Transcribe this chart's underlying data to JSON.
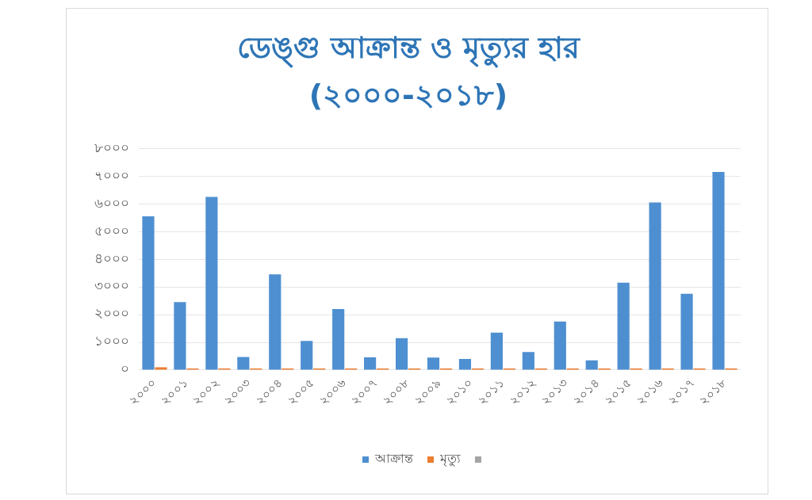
{
  "chart_data": {
    "type": "bar",
    "title": "ডেঙ্গু আক্রান্ত ও মৃত্যুর হার (২০০০-২০১৮)",
    "categories": [
      "২০০০",
      "২০০১",
      "২০০২",
      "২০০৩",
      "২০০৪",
      "২০০৫",
      "২০০৬",
      "২০০৭",
      "২০০৮",
      "২০০৯",
      "২০১০",
      "২০১১",
      "২০১২",
      "২০১৩",
      "২০১৪",
      "২০১৫",
      "২০১৬",
      "২০১৭",
      "২০১৮"
    ],
    "series": [
      {
        "name": "আক্রান্ত",
        "color": "#4e8fd1",
        "values": [
          5550,
          2450,
          6250,
          470,
          3450,
          1050,
          2200,
          460,
          1150,
          450,
          400,
          1350,
          650,
          1750,
          350,
          3150,
          6050,
          2750,
          7150
        ]
      },
      {
        "name": "মৃত্যু",
        "color": "#ed7d31",
        "values": [
          100,
          50,
          50,
          0,
          0,
          0,
          0,
          0,
          0,
          0,
          0,
          0,
          0,
          0,
          0,
          0,
          0,
          0,
          0
        ]
      }
    ],
    "ylim": [
      0,
      8000
    ],
    "yticks": [
      {
        "value": 0,
        "label": "০"
      },
      {
        "value": 1000,
        "label": "১০০০"
      },
      {
        "value": 2000,
        "label": "২০০০"
      },
      {
        "value": 3000,
        "label": "৩০০০"
      },
      {
        "value": 4000,
        "label": "৪০০০"
      },
      {
        "value": 5000,
        "label": "৫০০০"
      },
      {
        "value": 6000,
        "label": "৬০০০"
      },
      {
        "value": 7000,
        "label": "৭০০০"
      },
      {
        "value": 8000,
        "label": "৮০০০"
      }
    ],
    "grid": "y",
    "legend": "bottom"
  }
}
